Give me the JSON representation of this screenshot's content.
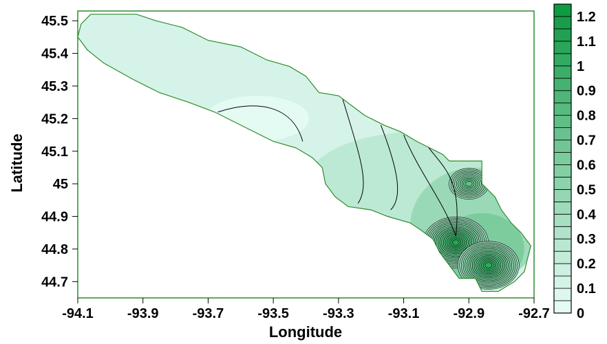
{
  "chart_data": {
    "type": "heatmap",
    "subtype": "filled-contour-map",
    "title": "",
    "xlabel": "Longitude",
    "ylabel": "Latitude",
    "xlim": [
      -94.1,
      -92.7
    ],
    "ylim": [
      44.65,
      45.53
    ],
    "x_ticks": [
      "-94.1",
      "-93.9",
      "-93.7",
      "-93.5",
      "-93.3",
      "-93.1",
      "-92.9",
      "-92.7"
    ],
    "y_ticks": [
      "44.7",
      "44.8",
      "44.9",
      "45",
      "45.1",
      "45.2",
      "45.3",
      "45.4",
      "45.5"
    ],
    "grid": false,
    "colorbar": {
      "min": 0,
      "max": 1.25,
      "step": 0.05,
      "labels": [
        "0",
        "0.1",
        "0.2",
        "0.3",
        "0.4",
        "0.5",
        "0.6",
        "0.7",
        "0.8",
        "0.9",
        "1",
        "1.1",
        "1.2"
      ],
      "colors": [
        "#e6fbf6",
        "#0f9a44"
      ]
    },
    "region_outline_color": "#2d8a2d",
    "hotspots": [
      {
        "lon": -92.94,
        "lat": 44.82,
        "value": 0.85
      },
      {
        "lon": -92.84,
        "lat": 44.75,
        "value": 0.8
      },
      {
        "lon": -92.9,
        "lat": 45.0,
        "value": 0.5
      }
    ]
  }
}
